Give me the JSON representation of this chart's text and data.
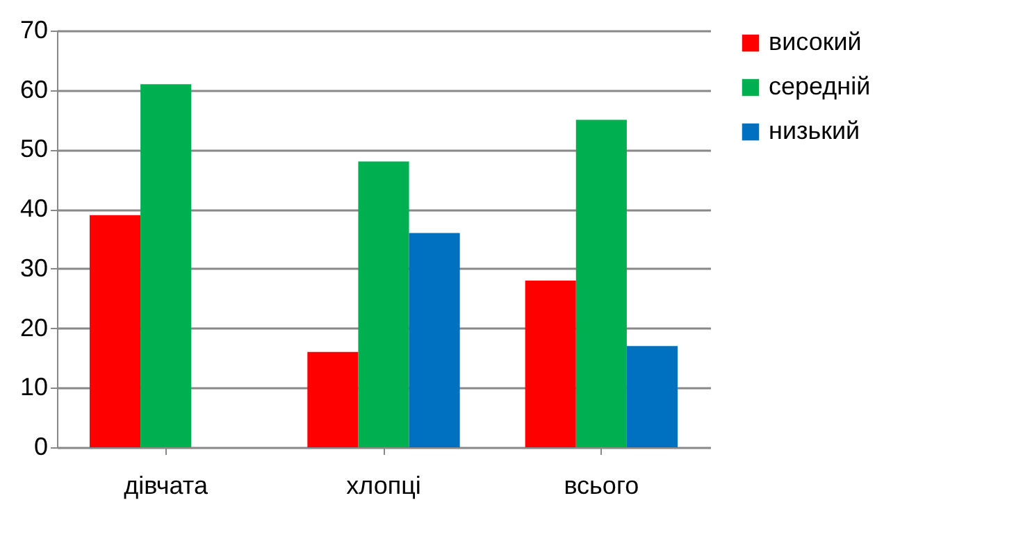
{
  "chart_data": {
    "type": "bar",
    "categories": [
      "дівчата",
      "хлопці",
      "всього"
    ],
    "series": [
      {
        "name": "високий",
        "color": "#ff0000",
        "values": [
          39,
          16,
          28
        ]
      },
      {
        "name": "середній",
        "color": "#00b050",
        "values": [
          61,
          48,
          55
        ]
      },
      {
        "name": "низький",
        "color": "#0070c0",
        "values": [
          0,
          36,
          17
        ]
      }
    ],
    "ylim": [
      0,
      70
    ],
    "yticks": [
      0,
      10,
      20,
      30,
      40,
      50,
      60,
      70
    ],
    "grid": "y",
    "legend": "right"
  }
}
